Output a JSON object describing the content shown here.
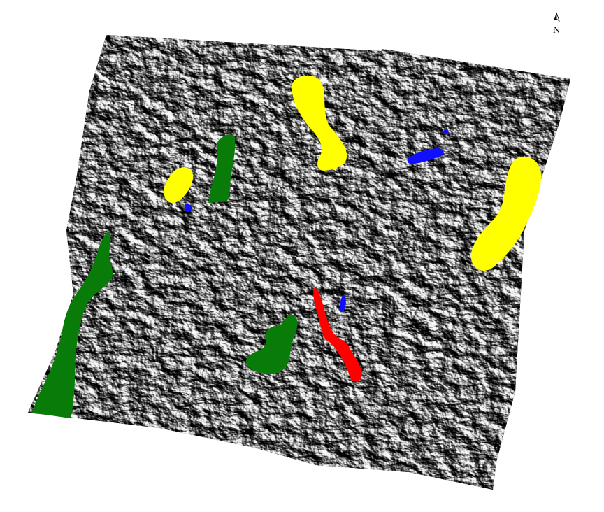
{
  "north_arrow": {
    "label": "N"
  },
  "colors": {
    "background": "#ffffff",
    "terrain_dark": "#0d0d0d",
    "terrain_light": "#d8d8d8",
    "class_yellow": "#ffff00",
    "class_green": "#087b08",
    "class_blue": "#1010ff",
    "class_red": "#ff0000"
  },
  "regions": [
    {
      "id": "yellow-north-center",
      "class": "yellow"
    },
    {
      "id": "yellow-east",
      "class": "yellow"
    },
    {
      "id": "yellow-west",
      "class": "yellow"
    },
    {
      "id": "green-north",
      "class": "green"
    },
    {
      "id": "green-southwest",
      "class": "green"
    },
    {
      "id": "green-center",
      "class": "green"
    },
    {
      "id": "blue-northeast",
      "class": "blue"
    },
    {
      "id": "blue-small-west",
      "class": "blue"
    },
    {
      "id": "blue-center",
      "class": "blue"
    },
    {
      "id": "red-center",
      "class": "red"
    }
  ]
}
